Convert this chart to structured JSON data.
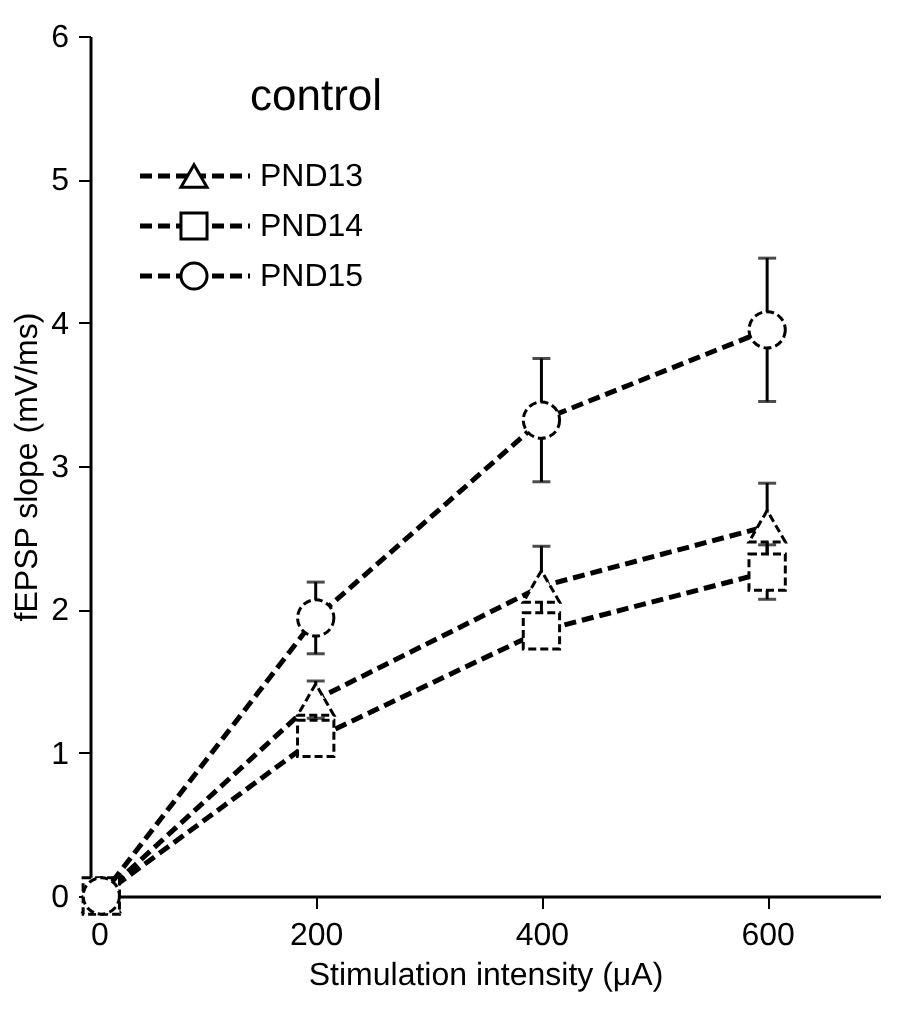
{
  "chart_data": {
    "type": "line",
    "annotations": [
      "control"
    ],
    "xlabel": "Stimulation intensity (μA)",
    "ylabel": "fEPSP slope (mV/ms)",
    "x": [
      10,
      200,
      400,
      600
    ],
    "series": [
      {
        "name": "PND13",
        "color": "#000000",
        "marker": "triangle",
        "values": [
          0,
          1.37,
          2.16,
          2.58
        ],
        "errors": [
          null,
          0.13,
          0.28,
          0.3
        ]
      },
      {
        "name": "PND14",
        "color": "#000000",
        "marker": "square",
        "values": [
          0,
          1.1,
          1.85,
          2.26
        ],
        "errors": [
          null,
          null,
          null,
          0.19
        ]
      },
      {
        "name": "PND15",
        "color": "#000000",
        "marker": "circle",
        "values": [
          0,
          1.94,
          3.32,
          3.95
        ],
        "errors": [
          null,
          0.25,
          0.43,
          0.5
        ]
      }
    ],
    "xlim": [
      0,
      700
    ],
    "xticks": [
      0,
      200,
      400,
      600
    ],
    "ylim": [
      0,
      6
    ],
    "yticks": [
      0,
      1,
      2,
      3,
      4,
      5,
      6
    ],
    "line_style": "dashed",
    "legend": "top left",
    "grid": false
  }
}
